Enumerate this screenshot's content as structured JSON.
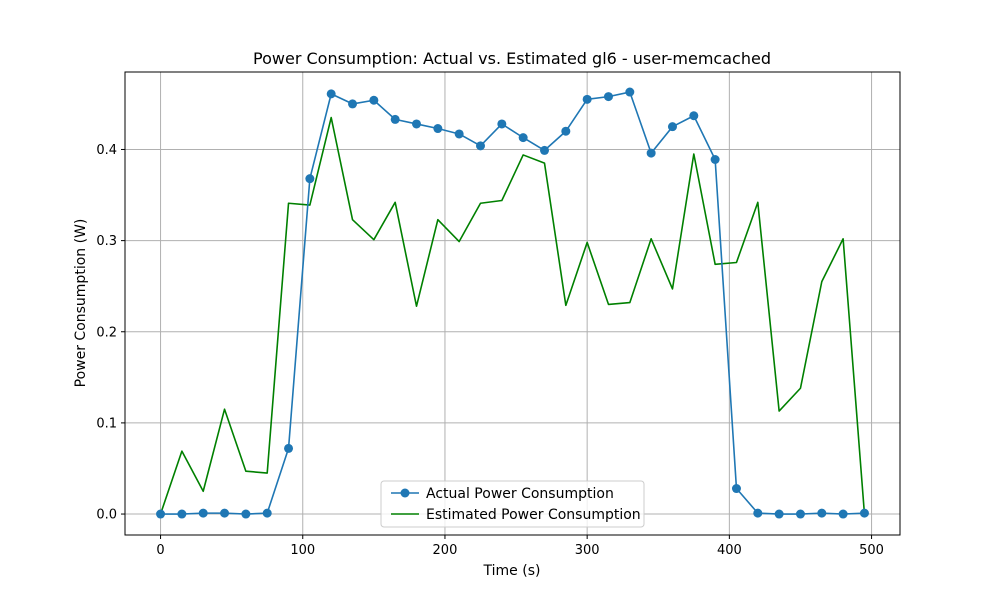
{
  "chart_data": {
    "type": "line",
    "title": "Power Consumption: Actual vs. Estimated gl6 - user-memcached",
    "xlabel": "Time (s)",
    "ylabel": "Power Consumption (W)",
    "xlim": [
      -25,
      520
    ],
    "ylim": [
      -0.023,
      0.485
    ],
    "xticks": [
      0,
      100,
      200,
      300,
      400,
      500
    ],
    "yticks": [
      0.0,
      0.1,
      0.2,
      0.3,
      0.4
    ],
    "xtick_labels": [
      "0",
      "100",
      "200",
      "300",
      "400",
      "500"
    ],
    "ytick_labels": [
      "0.0",
      "0.1",
      "0.2",
      "0.3",
      "0.4"
    ],
    "grid": true,
    "legend_position": "lower-center",
    "x": [
      0,
      15,
      30,
      45,
      60,
      75,
      90,
      105,
      120,
      135,
      150,
      165,
      180,
      195,
      210,
      225,
      240,
      255,
      270,
      285,
      300,
      315,
      330,
      345,
      360,
      375,
      390,
      405,
      420,
      435,
      450,
      465,
      480,
      495
    ],
    "series": [
      {
        "name": "Actual Power Consumption",
        "color": "#1f77b4",
        "marker": "circle",
        "values": [
          0.0,
          0.0,
          0.001,
          0.001,
          0.0,
          0.001,
          0.072,
          0.368,
          0.461,
          0.45,
          0.454,
          0.433,
          0.428,
          0.423,
          0.417,
          0.404,
          0.428,
          0.413,
          0.399,
          0.42,
          0.455,
          0.458,
          0.463,
          0.396,
          0.425,
          0.437,
          0.389,
          0.028,
          0.001,
          0.0,
          0.0,
          0.001,
          0.0,
          0.001
        ]
      },
      {
        "name": "Estimated Power Consumption",
        "color": "#008000",
        "marker": "none",
        "values": [
          0.0,
          0.069,
          0.025,
          0.115,
          0.047,
          0.045,
          0.341,
          0.339,
          0.435,
          0.323,
          0.301,
          0.342,
          0.228,
          0.323,
          0.299,
          0.341,
          0.344,
          0.394,
          0.385,
          0.229,
          0.298,
          0.23,
          0.232,
          0.302,
          0.247,
          0.395,
          0.274,
          0.276,
          0.342,
          0.113,
          0.138,
          0.255,
          0.302,
          0.0
        ]
      }
    ]
  }
}
